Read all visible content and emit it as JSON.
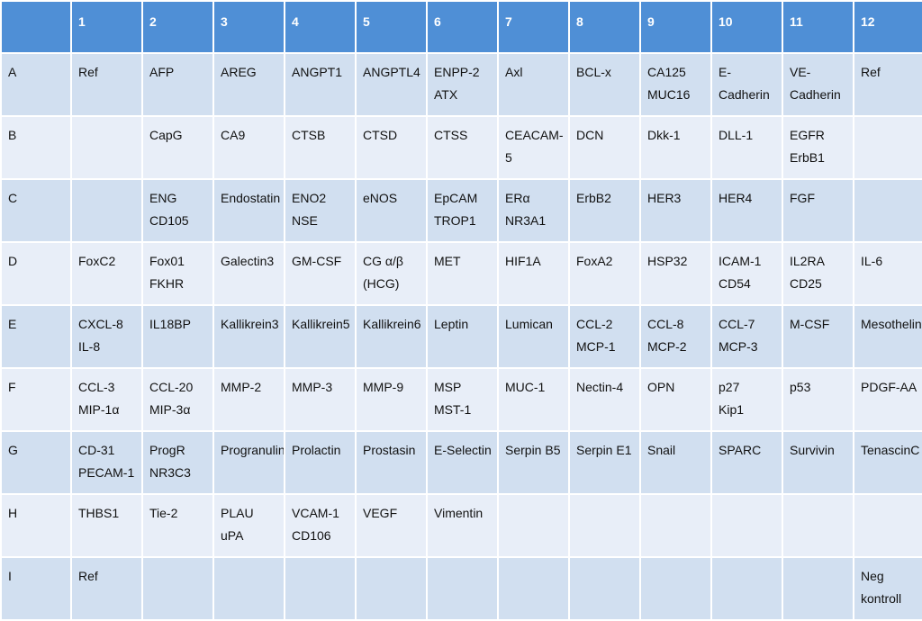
{
  "columns": [
    "",
    "1",
    "2",
    "3",
    "4",
    "5",
    "6",
    "7",
    "8",
    "9",
    "10",
    "11",
    "12"
  ],
  "rows": [
    [
      "A",
      "Ref",
      "AFP",
      "AREG",
      "ANGPT1",
      "ANGPTL4",
      "ENPP-2\nATX",
      "Axl",
      "BCL-x",
      "CA125\nMUC16",
      "E-Cadherin",
      "VE-\nCadherin",
      "Ref"
    ],
    [
      "B",
      "",
      "CapG",
      "CA9",
      "CTSB",
      "CTSD",
      "CTSS",
      "CEACAM-5",
      "DCN",
      "Dkk-1",
      "DLL-1",
      "EGFR\nErbB1",
      ""
    ],
    [
      "C",
      "",
      "ENG\nCD105",
      "Endostatin",
      "ENO2\nNSE",
      "eNOS",
      "EpCAM\nTROP1",
      "ERα\nNR3A1",
      "ErbB2",
      "HER3",
      "HER4",
      "FGF",
      ""
    ],
    [
      "D",
      "FoxC2",
      "Fox01\nFKHR",
      "Galectin3",
      "GM-CSF",
      "CG α/β\n(HCG)",
      "MET",
      "HIF1A",
      "FoxA2",
      "HSP32",
      "ICAM-1\nCD54",
      "IL2RA\nCD25",
      "IL-6"
    ],
    [
      "E",
      "CXCL-8\nIL-8",
      "IL18BP",
      "Kallikrein3",
      "Kallikrein5",
      "Kallikrein6",
      "Leptin",
      "Lumican",
      "CCL-2\nMCP-1",
      "CCL-8\nMCP-2",
      "CCL-7\nMCP-3",
      "M-CSF",
      "Mesothelin"
    ],
    [
      "F",
      "CCL-3\nMIP-1α",
      "CCL-20\nMIP-3α",
      "MMP-2",
      "MMP-3",
      "MMP-9",
      "MSP\nMST-1",
      "MUC-1",
      "Nectin-4",
      "OPN",
      "p27\nKip1",
      "p53",
      "PDGF-AA"
    ],
    [
      "G",
      "CD-31\nPECAM-1",
      "ProgR\nNR3C3",
      "Progranulin",
      "Prolactin",
      "Prostasin",
      "E-Selectin",
      "Serpin B5",
      "Serpin E1",
      "Snail",
      "SPARC",
      "Survivin",
      "TenascinC"
    ],
    [
      "H",
      "THBS1",
      "Tie-2",
      "PLAU\nuPA",
      "VCAM-1\nCD106",
      "VEGF",
      "Vimentin",
      "",
      "",
      "",
      "",
      "",
      ""
    ],
    [
      "I",
      "Ref",
      "",
      "",
      "",
      "",
      "",
      "",
      "",
      "",
      "",
      "",
      "Neg\nkontroll"
    ]
  ],
  "colors": {
    "header": "#4f8fd6",
    "row_dark": "#d1dff0",
    "row_light": "#e8eef8"
  }
}
